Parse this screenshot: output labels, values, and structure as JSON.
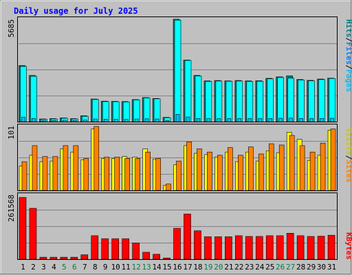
{
  "title": "Daily usage for July 2025",
  "colors": {
    "hits": "#00ffff",
    "hits_shade": "#008080",
    "files": "#0080ff",
    "pages": "#00c0ff",
    "visits": "#ffff00",
    "sites": "#ff8000",
    "kbytes": "#ff0000",
    "title": "#0000ff",
    "weekend_label": "#008040",
    "plot_bg": "#c0c0c0",
    "grid": "#808080"
  },
  "chart_data": [
    {
      "type": "bar",
      "panel": "hits-files-pages",
      "ymax_label": "5685",
      "ylim": [
        0,
        5685
      ],
      "legend": [
        "Hits",
        "Files",
        "Pages"
      ],
      "categories": [
        "1",
        "2",
        "3",
        "4",
        "5",
        "6",
        "7",
        "8",
        "9",
        "10",
        "11",
        "12",
        "13",
        "14",
        "15",
        "16",
        "17",
        "18",
        "19",
        "20",
        "21",
        "22",
        "23",
        "24",
        "25",
        "26",
        "27",
        "28",
        "29",
        "30",
        "31"
      ],
      "series": [
        {
          "name": "Hits",
          "values": [
            3100,
            2550,
            150,
            170,
            210,
            170,
            330,
            1250,
            1130,
            1120,
            1110,
            1220,
            1330,
            1280,
            240,
            5650,
            3400,
            2550,
            2250,
            2270,
            2250,
            2270,
            2250,
            2260,
            2390,
            2470,
            2530,
            2330,
            2280,
            2350,
            2400
          ]
        },
        {
          "name": "Files",
          "values": [
            3050,
            2500,
            130,
            150,
            190,
            150,
            300,
            1230,
            1110,
            1100,
            1090,
            1200,
            1310,
            1260,
            220,
            5600,
            3380,
            2520,
            2220,
            2240,
            2230,
            2240,
            2220,
            2230,
            2360,
            2440,
            2400,
            2300,
            2250,
            2320,
            2380
          ]
        },
        {
          "name": "Pages",
          "values": [
            250,
            180,
            60,
            70,
            80,
            70,
            90,
            150,
            140,
            140,
            130,
            150,
            160,
            150,
            60,
            400,
            260,
            180,
            170,
            170,
            170,
            170,
            170,
            170,
            180,
            190,
            200,
            180,
            170,
            180,
            190
          ]
        }
      ]
    },
    {
      "type": "bar",
      "panel": "visits-sites",
      "ymax_label": "101",
      "ylim": [
        0,
        101
      ],
      "legend": [
        "Visits",
        "Sites"
      ],
      "categories": [
        "1",
        "2",
        "3",
        "4",
        "5",
        "6",
        "7",
        "8",
        "9",
        "10",
        "11",
        "12",
        "13",
        "14",
        "15",
        "16",
        "17",
        "18",
        "19",
        "20",
        "21",
        "22",
        "23",
        "24",
        "25",
        "26",
        "27",
        "28",
        "29",
        "30",
        "31"
      ],
      "series": [
        {
          "name": "Visits",
          "values": [
            38,
            55,
            45,
            46,
            65,
            60,
            48,
            96,
            50,
            50,
            53,
            52,
            65,
            49,
            8,
            40,
            70,
            58,
            56,
            52,
            60,
            45,
            60,
            46,
            62,
            59,
            91,
            80,
            47,
            55,
            94
          ]
        },
        {
          "name": "Sites",
          "values": [
            45,
            70,
            53,
            53,
            70,
            70,
            50,
            100,
            52,
            52,
            50,
            50,
            60,
            50,
            10,
            46,
            76,
            65,
            60,
            55,
            67,
            55,
            68,
            57,
            73,
            71,
            86,
            70,
            60,
            74,
            96
          ]
        }
      ]
    },
    {
      "type": "bar",
      "panel": "kbytes",
      "ymax_label": "261568",
      "ylim": [
        0,
        261568
      ],
      "legend": [
        "KBytes"
      ],
      "categories": [
        "1",
        "2",
        "3",
        "4",
        "5",
        "6",
        "7",
        "8",
        "9",
        "10",
        "11",
        "12",
        "13",
        "14",
        "15",
        "16",
        "17",
        "18",
        "19",
        "20",
        "21",
        "22",
        "23",
        "24",
        "25",
        "26",
        "27",
        "28",
        "29",
        "30",
        "31"
      ],
      "series": [
        {
          "name": "KBytes",
          "values": [
            250000,
            206000,
            8000,
            8000,
            8000,
            8000,
            18000,
            95000,
            83000,
            83000,
            83000,
            66000,
            28000,
            20000,
            5000,
            125000,
            183000,
            115000,
            91000,
            91000,
            91000,
            95000,
            92000,
            92000,
            95000,
            95000,
            105000,
            95000,
            92000,
            93000,
            97000
          ]
        }
      ]
    }
  ],
  "x_labels": [
    {
      "text": "1",
      "weekend": false
    },
    {
      "text": "2",
      "weekend": false
    },
    {
      "text": "3",
      "weekend": false
    },
    {
      "text": "4",
      "weekend": false
    },
    {
      "text": "5",
      "weekend": true
    },
    {
      "text": "6",
      "weekend": true
    },
    {
      "text": "7",
      "weekend": false
    },
    {
      "text": "8",
      "weekend": false
    },
    {
      "text": "9",
      "weekend": false
    },
    {
      "text": "10",
      "weekend": false
    },
    {
      "text": "11",
      "weekend": false
    },
    {
      "text": "12",
      "weekend": true
    },
    {
      "text": "13",
      "weekend": true
    },
    {
      "text": "14",
      "weekend": false
    },
    {
      "text": "15",
      "weekend": false
    },
    {
      "text": "16",
      "weekend": false
    },
    {
      "text": "17",
      "weekend": false
    },
    {
      "text": "18",
      "weekend": false
    },
    {
      "text": "19",
      "weekend": true
    },
    {
      "text": "20",
      "weekend": true
    },
    {
      "text": "21",
      "weekend": false
    },
    {
      "text": "22",
      "weekend": false
    },
    {
      "text": "23",
      "weekend": false
    },
    {
      "text": "24",
      "weekend": false
    },
    {
      "text": "25",
      "weekend": false
    },
    {
      "text": "26",
      "weekend": true
    },
    {
      "text": "27",
      "weekend": true
    },
    {
      "text": "28",
      "weekend": false
    },
    {
      "text": "29",
      "weekend": false
    },
    {
      "text": "30",
      "weekend": false
    },
    {
      "text": "31",
      "weekend": false
    }
  ]
}
